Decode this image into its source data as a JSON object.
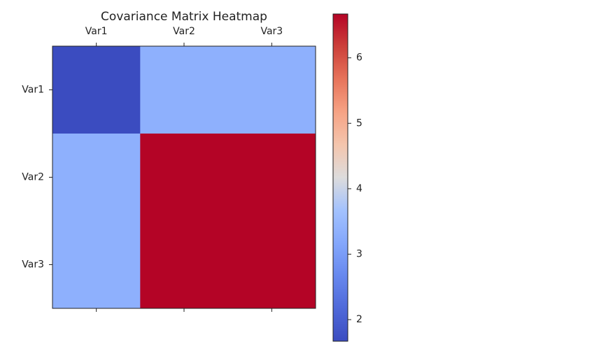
{
  "chart_data": {
    "type": "heatmap",
    "title": "Covariance Matrix Heatmap",
    "x_categories": [
      "Var1",
      "Var2",
      "Var3"
    ],
    "y_categories": [
      "Var1",
      "Var2",
      "Var3"
    ],
    "values": [
      [
        1.67,
        3.33,
        3.33
      ],
      [
        3.33,
        6.67,
        6.67
      ],
      [
        3.33,
        6.67,
        6.67
      ]
    ],
    "colormap": "coolwarm",
    "clim": [
      1.67,
      6.67
    ],
    "cticks": [
      2,
      3,
      4,
      5,
      6
    ]
  }
}
